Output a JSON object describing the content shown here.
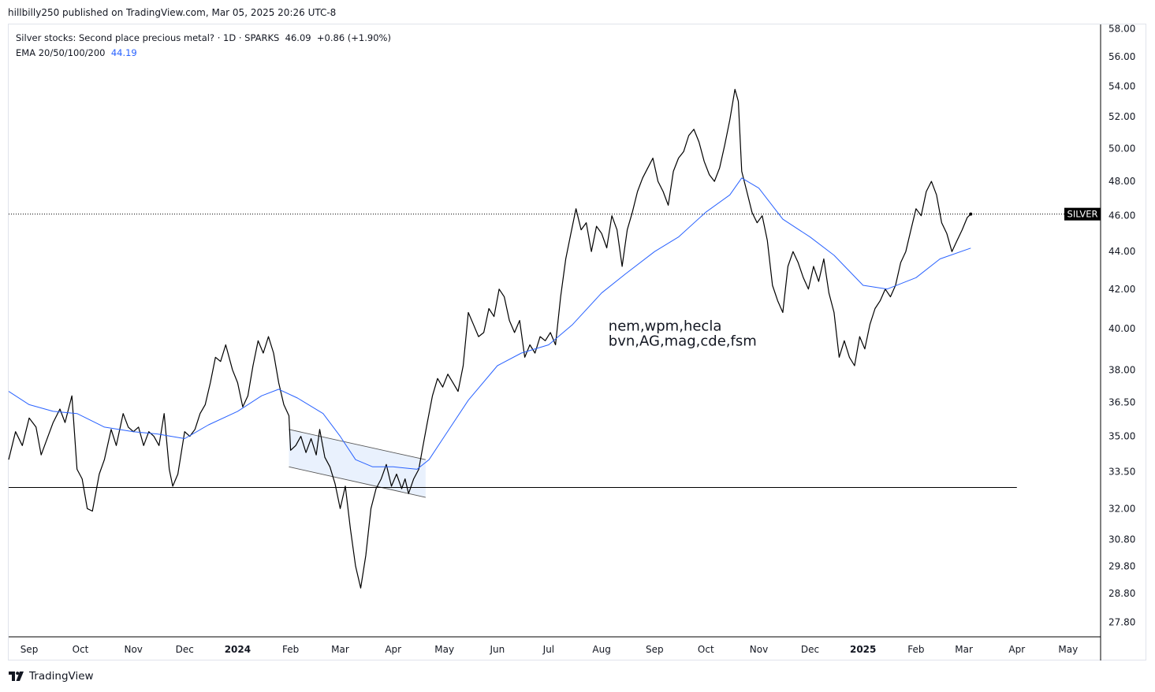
{
  "header": {
    "publisher": "hillbilly250 published on TradingView.com, Mar 05, 2025 20:26 UTC-8"
  },
  "legend": {
    "title": "Silver stocks: Second place precious metal? · 1D · SPARKS",
    "last": "46.09",
    "change": "+0.86 (+1.90%)",
    "ema_label": "EMA 20/50/100/200",
    "ema_value": "44.19"
  },
  "footer": {
    "brand": "TradingView"
  },
  "colors": {
    "price": "#000000",
    "ema": "#2962ff",
    "channel_fill": "#e3eefc",
    "badge_bg": "#000000"
  },
  "chart_data": {
    "type": "line",
    "x_start": "2023-08-20",
    "x_end": "2025-05-20",
    "y_scale": "log",
    "ylim": [
      27.3,
      58.3
    ],
    "y_ticks": [
      "58.00",
      "56.00",
      "54.00",
      "52.00",
      "50.00",
      "48.00",
      "46.00",
      "44.00",
      "42.00",
      "40.00",
      "38.00",
      "36.50",
      "35.00",
      "33.50",
      "32.00",
      "30.80",
      "29.80",
      "28.80",
      "27.80"
    ],
    "x_ticks": [
      {
        "label": "Sep",
        "date": "2023-09-01",
        "bold": false
      },
      {
        "label": "Oct",
        "date": "2023-10-01",
        "bold": false
      },
      {
        "label": "Nov",
        "date": "2023-11-01",
        "bold": false
      },
      {
        "label": "Dec",
        "date": "2023-12-01",
        "bold": false
      },
      {
        "label": "2024",
        "date": "2024-01-01",
        "bold": true
      },
      {
        "label": "Feb",
        "date": "2024-02-01",
        "bold": false
      },
      {
        "label": "Mar",
        "date": "2024-03-01",
        "bold": false
      },
      {
        "label": "Apr",
        "date": "2024-04-01",
        "bold": false
      },
      {
        "label": "May",
        "date": "2024-05-01",
        "bold": false
      },
      {
        "label": "Jun",
        "date": "2024-06-01",
        "bold": false
      },
      {
        "label": "Jul",
        "date": "2024-07-01",
        "bold": false
      },
      {
        "label": "Aug",
        "date": "2024-08-01",
        "bold": false
      },
      {
        "label": "Sep",
        "date": "2024-09-01",
        "bold": false
      },
      {
        "label": "Oct",
        "date": "2024-10-01",
        "bold": false
      },
      {
        "label": "Nov",
        "date": "2024-11-01",
        "bold": false
      },
      {
        "label": "Dec",
        "date": "2024-12-01",
        "bold": false
      },
      {
        "label": "2025",
        "date": "2025-01-01",
        "bold": true
      },
      {
        "label": "Feb",
        "date": "2025-02-01",
        "bold": false
      },
      {
        "label": "Mar",
        "date": "2025-03-01",
        "bold": false
      },
      {
        "label": "Apr",
        "date": "2025-04-01",
        "bold": false
      },
      {
        "label": "May",
        "date": "2025-05-01",
        "bold": false
      }
    ],
    "series": [
      {
        "name": "SPARKS",
        "points": [
          [
            "2023-08-20",
            34.0
          ],
          [
            "2023-08-24",
            35.2
          ],
          [
            "2023-08-28",
            34.6
          ],
          [
            "2023-09-01",
            35.8
          ],
          [
            "2023-09-05",
            35.4
          ],
          [
            "2023-09-08",
            34.2
          ],
          [
            "2023-09-12",
            35.0
          ],
          [
            "2023-09-15",
            35.6
          ],
          [
            "2023-09-19",
            36.2
          ],
          [
            "2023-09-22",
            35.6
          ],
          [
            "2023-09-26",
            36.8
          ],
          [
            "2023-09-29",
            33.6
          ],
          [
            "2023-10-02",
            33.2
          ],
          [
            "2023-10-05",
            32.0
          ],
          [
            "2023-10-08",
            31.9
          ],
          [
            "2023-10-12",
            33.4
          ],
          [
            "2023-10-15",
            34.0
          ],
          [
            "2023-10-19",
            35.3
          ],
          [
            "2023-10-22",
            34.6
          ],
          [
            "2023-10-26",
            36.0
          ],
          [
            "2023-10-29",
            35.4
          ],
          [
            "2023-11-01",
            35.2
          ],
          [
            "2023-11-04",
            35.4
          ],
          [
            "2023-11-07",
            34.6
          ],
          [
            "2023-11-10",
            35.2
          ],
          [
            "2023-11-13",
            35.0
          ],
          [
            "2023-11-16",
            34.6
          ],
          [
            "2023-11-19",
            36.0
          ],
          [
            "2023-11-22",
            33.6
          ],
          [
            "2023-11-24",
            32.9
          ],
          [
            "2023-11-27",
            33.4
          ],
          [
            "2023-12-01",
            35.2
          ],
          [
            "2023-12-04",
            35.0
          ],
          [
            "2023-12-07",
            35.3
          ],
          [
            "2023-12-10",
            36.0
          ],
          [
            "2023-12-13",
            36.4
          ],
          [
            "2023-12-16",
            37.4
          ],
          [
            "2023-12-19",
            38.6
          ],
          [
            "2023-12-22",
            38.4
          ],
          [
            "2023-12-25",
            39.2
          ],
          [
            "2023-12-29",
            38.0
          ],
          [
            "2024-01-01",
            37.4
          ],
          [
            "2024-01-04",
            36.3
          ],
          [
            "2024-01-07",
            36.8
          ],
          [
            "2024-01-10",
            38.2
          ],
          [
            "2024-01-13",
            39.4
          ],
          [
            "2024-01-16",
            38.8
          ],
          [
            "2024-01-19",
            39.6
          ],
          [
            "2024-01-22",
            38.8
          ],
          [
            "2024-01-25",
            37.4
          ],
          [
            "2024-01-28",
            36.4
          ],
          [
            "2024-01-31",
            35.9
          ],
          [
            "2024-02-01",
            34.4
          ],
          [
            "2024-02-04",
            34.6
          ],
          [
            "2024-02-07",
            35.0
          ],
          [
            "2024-02-10",
            34.3
          ],
          [
            "2024-02-13",
            34.9
          ],
          [
            "2024-02-16",
            34.2
          ],
          [
            "2024-02-18",
            35.3
          ],
          [
            "2024-02-21",
            34.1
          ],
          [
            "2024-02-24",
            33.7
          ],
          [
            "2024-02-27",
            33.0
          ],
          [
            "2024-03-01",
            32.0
          ],
          [
            "2024-03-04",
            32.9
          ],
          [
            "2024-03-07",
            31.2
          ],
          [
            "2024-03-10",
            29.8
          ],
          [
            "2024-03-13",
            29.0
          ],
          [
            "2024-03-16",
            30.2
          ],
          [
            "2024-03-19",
            32.0
          ],
          [
            "2024-03-22",
            32.8
          ],
          [
            "2024-03-25",
            33.2
          ],
          [
            "2024-03-28",
            33.8
          ],
          [
            "2024-03-31",
            32.9
          ],
          [
            "2024-04-03",
            33.4
          ],
          [
            "2024-04-06",
            32.8
          ],
          [
            "2024-04-08",
            33.2
          ],
          [
            "2024-04-10",
            32.6
          ],
          [
            "2024-04-13",
            33.2
          ],
          [
            "2024-04-16",
            33.6
          ],
          [
            "2024-04-18",
            34.4
          ],
          [
            "2024-04-21",
            35.6
          ],
          [
            "2024-04-24",
            36.8
          ],
          [
            "2024-04-27",
            37.6
          ],
          [
            "2024-04-30",
            37.2
          ],
          [
            "2024-05-03",
            37.8
          ],
          [
            "2024-05-06",
            37.4
          ],
          [
            "2024-05-09",
            37.0
          ],
          [
            "2024-05-12",
            38.2
          ],
          [
            "2024-05-15",
            40.8
          ],
          [
            "2024-05-18",
            40.2
          ],
          [
            "2024-05-21",
            39.6
          ],
          [
            "2024-05-24",
            39.8
          ],
          [
            "2024-05-27",
            41.0
          ],
          [
            "2024-05-30",
            40.6
          ],
          [
            "2024-06-02",
            42.0
          ],
          [
            "2024-06-05",
            41.6
          ],
          [
            "2024-06-08",
            40.4
          ],
          [
            "2024-06-11",
            39.8
          ],
          [
            "2024-06-14",
            40.4
          ],
          [
            "2024-06-17",
            38.6
          ],
          [
            "2024-06-20",
            39.2
          ],
          [
            "2024-06-23",
            38.8
          ],
          [
            "2024-06-26",
            39.6
          ],
          [
            "2024-06-29",
            39.4
          ],
          [
            "2024-07-02",
            39.8
          ],
          [
            "2024-07-05",
            39.2
          ],
          [
            "2024-07-08",
            41.6
          ],
          [
            "2024-07-11",
            43.6
          ],
          [
            "2024-07-14",
            45.0
          ],
          [
            "2024-07-17",
            46.4
          ],
          [
            "2024-07-20",
            45.2
          ],
          [
            "2024-07-23",
            45.6
          ],
          [
            "2024-07-26",
            44.0
          ],
          [
            "2024-07-29",
            45.4
          ],
          [
            "2024-08-01",
            45.0
          ],
          [
            "2024-08-04",
            44.2
          ],
          [
            "2024-08-07",
            46.0
          ],
          [
            "2024-08-10",
            45.2
          ],
          [
            "2024-08-13",
            43.2
          ],
          [
            "2024-08-16",
            45.2
          ],
          [
            "2024-08-19",
            46.2
          ],
          [
            "2024-08-22",
            47.4
          ],
          [
            "2024-08-25",
            48.2
          ],
          [
            "2024-08-28",
            48.8
          ],
          [
            "2024-08-31",
            49.4
          ],
          [
            "2024-09-03",
            48.0
          ],
          [
            "2024-09-06",
            47.4
          ],
          [
            "2024-09-09",
            46.6
          ],
          [
            "2024-09-12",
            48.6
          ],
          [
            "2024-09-15",
            49.4
          ],
          [
            "2024-09-18",
            49.8
          ],
          [
            "2024-09-21",
            50.8
          ],
          [
            "2024-09-24",
            51.2
          ],
          [
            "2024-09-27",
            50.4
          ],
          [
            "2024-09-30",
            49.2
          ],
          [
            "2024-10-03",
            48.4
          ],
          [
            "2024-10-06",
            48.0
          ],
          [
            "2024-10-09",
            48.8
          ],
          [
            "2024-10-12",
            50.2
          ],
          [
            "2024-10-15",
            51.8
          ],
          [
            "2024-10-18",
            53.8
          ],
          [
            "2024-10-20",
            53.0
          ],
          [
            "2024-10-22",
            48.6
          ],
          [
            "2024-10-25",
            47.4
          ],
          [
            "2024-10-28",
            46.2
          ],
          [
            "2024-10-31",
            45.6
          ],
          [
            "2024-11-03",
            46.0
          ],
          [
            "2024-11-06",
            44.6
          ],
          [
            "2024-11-09",
            42.2
          ],
          [
            "2024-11-12",
            41.4
          ],
          [
            "2024-11-15",
            40.8
          ],
          [
            "2024-11-18",
            43.2
          ],
          [
            "2024-11-21",
            44.0
          ],
          [
            "2024-11-24",
            43.4
          ],
          [
            "2024-11-27",
            42.6
          ],
          [
            "2024-11-30",
            42.0
          ],
          [
            "2024-12-03",
            43.2
          ],
          [
            "2024-12-06",
            42.4
          ],
          [
            "2024-12-09",
            43.6
          ],
          [
            "2024-12-12",
            41.8
          ],
          [
            "2024-12-15",
            40.8
          ],
          [
            "2024-12-18",
            38.6
          ],
          [
            "2024-12-21",
            39.4
          ],
          [
            "2024-12-24",
            38.6
          ],
          [
            "2024-12-27",
            38.2
          ],
          [
            "2024-12-30",
            39.6
          ],
          [
            "2025-01-02",
            39.0
          ],
          [
            "2025-01-05",
            40.2
          ],
          [
            "2025-01-08",
            41.0
          ],
          [
            "2025-01-11",
            41.4
          ],
          [
            "2025-01-14",
            42.0
          ],
          [
            "2025-01-17",
            41.6
          ],
          [
            "2025-01-20",
            42.2
          ],
          [
            "2025-01-23",
            43.4
          ],
          [
            "2025-01-26",
            44.0
          ],
          [
            "2025-01-29",
            45.2
          ],
          [
            "2025-02-01",
            46.4
          ],
          [
            "2025-02-04",
            46.0
          ],
          [
            "2025-02-07",
            47.4
          ],
          [
            "2025-02-10",
            48.0
          ],
          [
            "2025-02-13",
            47.2
          ],
          [
            "2025-02-16",
            45.6
          ],
          [
            "2025-02-19",
            45.0
          ],
          [
            "2025-02-22",
            44.0
          ],
          [
            "2025-02-25",
            44.6
          ],
          [
            "2025-02-28",
            45.2
          ],
          [
            "2025-03-03",
            45.9
          ],
          [
            "2025-03-05",
            46.09
          ]
        ]
      },
      {
        "name": "EMA",
        "points": [
          [
            "2023-08-20",
            37.0
          ],
          [
            "2023-09-01",
            36.4
          ],
          [
            "2023-09-15",
            36.1
          ],
          [
            "2023-09-29",
            36.0
          ],
          [
            "2023-10-15",
            35.4
          ],
          [
            "2023-11-01",
            35.2
          ],
          [
            "2023-11-15",
            35.1
          ],
          [
            "2023-12-01",
            34.9
          ],
          [
            "2023-12-15",
            35.5
          ],
          [
            "2024-01-01",
            36.1
          ],
          [
            "2024-01-15",
            36.8
          ],
          [
            "2024-01-25",
            37.1
          ],
          [
            "2024-02-05",
            36.7
          ],
          [
            "2024-02-20",
            36.0
          ],
          [
            "2024-03-01",
            35.0
          ],
          [
            "2024-03-10",
            34.0
          ],
          [
            "2024-03-20",
            33.7
          ],
          [
            "2024-04-01",
            33.7
          ],
          [
            "2024-04-15",
            33.6
          ],
          [
            "2024-04-22",
            34.0
          ],
          [
            "2024-05-01",
            35.0
          ],
          [
            "2024-05-15",
            36.6
          ],
          [
            "2024-06-01",
            38.2
          ],
          [
            "2024-06-15",
            38.8
          ],
          [
            "2024-07-01",
            39.2
          ],
          [
            "2024-07-15",
            40.2
          ],
          [
            "2024-08-01",
            41.8
          ],
          [
            "2024-08-15",
            42.8
          ],
          [
            "2024-09-01",
            44.0
          ],
          [
            "2024-09-15",
            44.8
          ],
          [
            "2024-10-01",
            46.2
          ],
          [
            "2024-10-15",
            47.2
          ],
          [
            "2024-10-22",
            48.2
          ],
          [
            "2024-11-01",
            47.6
          ],
          [
            "2024-11-15",
            45.8
          ],
          [
            "2024-12-01",
            44.8
          ],
          [
            "2024-12-15",
            43.8
          ],
          [
            "2025-01-01",
            42.2
          ],
          [
            "2025-01-15",
            42.0
          ],
          [
            "2025-02-01",
            42.6
          ],
          [
            "2025-02-15",
            43.6
          ],
          [
            "2025-03-05",
            44.19
          ]
        ]
      }
    ],
    "support_line": {
      "value": 32.85,
      "from": "2023-08-20",
      "to": "2025-04-01"
    },
    "channel": {
      "from": "2024-01-31",
      "to": "2024-04-20",
      "upper": [
        35.3,
        34.0
      ],
      "lower": [
        33.7,
        32.45
      ]
    },
    "last_price_line": 46.09,
    "last_price_label": "SILVER",
    "annotation": {
      "lines": [
        "nem,wpm,hecla",
        "bvn,AG,mag,cde,fsm"
      ],
      "date": "2024-08-05",
      "value": 39.9
    }
  }
}
